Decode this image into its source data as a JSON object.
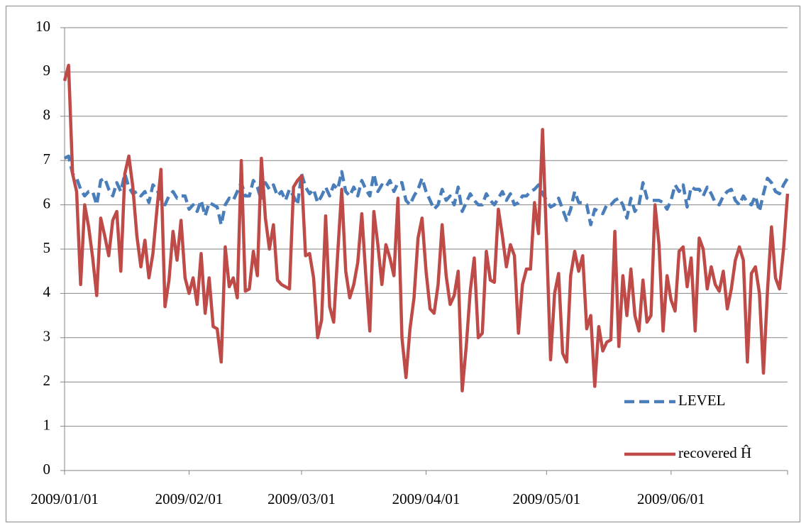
{
  "chart_data": {
    "type": "line",
    "x": [
      "2009/01/01",
      "2009/01/02",
      "2009/01/03",
      "2009/01/04",
      "2009/01/05",
      "2009/01/06",
      "2009/01/07",
      "2009/01/08",
      "2009/01/09",
      "2009/01/10",
      "2009/01/11",
      "2009/01/12",
      "2009/01/13",
      "2009/01/14",
      "2009/01/15",
      "2009/01/16",
      "2009/01/17",
      "2009/01/18",
      "2009/01/19",
      "2009/01/20",
      "2009/01/21",
      "2009/01/22",
      "2009/01/23",
      "2009/01/24",
      "2009/01/25",
      "2009/01/26",
      "2009/01/27",
      "2009/01/28",
      "2009/01/29",
      "2009/01/30",
      "2009/01/31",
      "2009/02/01",
      "2009/02/02",
      "2009/02/03",
      "2009/02/04",
      "2009/02/05",
      "2009/02/06",
      "2009/02/07",
      "2009/02/08",
      "2009/02/09",
      "2009/02/10",
      "2009/02/11",
      "2009/02/12",
      "2009/02/13",
      "2009/02/14",
      "2009/02/15",
      "2009/02/16",
      "2009/02/17",
      "2009/02/18",
      "2009/02/19",
      "2009/02/20",
      "2009/02/21",
      "2009/02/22",
      "2009/02/23",
      "2009/02/24",
      "2009/02/25",
      "2009/02/26",
      "2009/02/27",
      "2009/02/28",
      "2009/03/01",
      "2009/03/02",
      "2009/03/03",
      "2009/03/04",
      "2009/03/05",
      "2009/03/06",
      "2009/03/07",
      "2009/03/08",
      "2009/03/09",
      "2009/03/10",
      "2009/03/11",
      "2009/03/12",
      "2009/03/13",
      "2009/03/14",
      "2009/03/15",
      "2009/03/16",
      "2009/03/17",
      "2009/03/18",
      "2009/03/19",
      "2009/03/20",
      "2009/03/21",
      "2009/03/22",
      "2009/03/23",
      "2009/03/24",
      "2009/03/25",
      "2009/03/26",
      "2009/03/27",
      "2009/03/28",
      "2009/03/29",
      "2009/03/30",
      "2009/03/31",
      "2009/04/01",
      "2009/04/02",
      "2009/04/03",
      "2009/04/04",
      "2009/04/05",
      "2009/04/06",
      "2009/04/07",
      "2009/04/08",
      "2009/04/09",
      "2009/04/10",
      "2009/04/11",
      "2009/04/12",
      "2009/04/13",
      "2009/04/14",
      "2009/04/15",
      "2009/04/16",
      "2009/04/17",
      "2009/04/18",
      "2009/04/19",
      "2009/04/20",
      "2009/04/21",
      "2009/04/22",
      "2009/04/23",
      "2009/04/24",
      "2009/04/25",
      "2009/04/26",
      "2009/04/27",
      "2009/04/28",
      "2009/04/29",
      "2009/04/30",
      "2009/05/01",
      "2009/05/02",
      "2009/05/03",
      "2009/05/04",
      "2009/05/05",
      "2009/05/06",
      "2009/05/07",
      "2009/05/08",
      "2009/05/09",
      "2009/05/10",
      "2009/05/11",
      "2009/05/12",
      "2009/05/13",
      "2009/05/14",
      "2009/05/15",
      "2009/05/16",
      "2009/05/17",
      "2009/05/18",
      "2009/05/19",
      "2009/05/20",
      "2009/05/21",
      "2009/05/22",
      "2009/05/23",
      "2009/05/24",
      "2009/05/25",
      "2009/05/26",
      "2009/05/27",
      "2009/05/28",
      "2009/05/29",
      "2009/05/30",
      "2009/05/31",
      "2009/06/01",
      "2009/06/02",
      "2009/06/03",
      "2009/06/04",
      "2009/06/05",
      "2009/06/06",
      "2009/06/07",
      "2009/06/08",
      "2009/06/09",
      "2009/06/10",
      "2009/06/11",
      "2009/06/12",
      "2009/06/13",
      "2009/06/14",
      "2009/06/15",
      "2009/06/16",
      "2009/06/17",
      "2009/06/18",
      "2009/06/19",
      "2009/06/20",
      "2009/06/21",
      "2009/06/22",
      "2009/06/23",
      "2009/06/24",
      "2009/06/25",
      "2009/06/26",
      "2009/06/27",
      "2009/06/28",
      "2009/06/29",
      "2009/06/30"
    ],
    "series": [
      {
        "name": "LEVEL",
        "color": "#4a7ebb",
        "dashed": true,
        "values": [
          7.05,
          7.1,
          6.7,
          6.6,
          6.35,
          6.2,
          6.3,
          6.3,
          6.0,
          6.55,
          6.6,
          6.35,
          6.2,
          6.5,
          6.3,
          6.7,
          6.4,
          6.25,
          6.3,
          6.2,
          6.3,
          6.05,
          6.45,
          6.35,
          6.1,
          6.0,
          6.2,
          6.3,
          6.15,
          6.2,
          6.2,
          5.9,
          6.0,
          5.85,
          6.1,
          5.75,
          6.05,
          6.0,
          5.95,
          5.55,
          6.0,
          6.15,
          6.1,
          6.3,
          6.5,
          6.2,
          6.2,
          6.55,
          6.4,
          6.1,
          6.5,
          6.35,
          6.45,
          6.2,
          6.3,
          6.1,
          6.35,
          6.2,
          6.0,
          6.7,
          6.4,
          6.25,
          6.35,
          6.05,
          6.2,
          6.4,
          6.2,
          6.45,
          6.35,
          6.75,
          6.3,
          6.2,
          6.4,
          6.2,
          6.55,
          6.35,
          6.2,
          6.7,
          6.3,
          6.45,
          6.4,
          6.55,
          6.3,
          6.5,
          6.5,
          6.1,
          6.0,
          6.2,
          6.35,
          6.6,
          6.3,
          6.1,
          5.9,
          6.0,
          6.35,
          6.1,
          6.2,
          6.0,
          6.4,
          5.85,
          6.05,
          6.25,
          6.1,
          6.0,
          6.0,
          6.25,
          6.1,
          6.0,
          6.15,
          6.3,
          6.1,
          6.25,
          6.0,
          6.05,
          6.2,
          6.2,
          6.3,
          6.35,
          6.45,
          6.25,
          6.1,
          5.95,
          6.0,
          6.15,
          5.9,
          5.65,
          5.9,
          6.3,
          6.05,
          6.05,
          6.0,
          5.55,
          5.9,
          5.85,
          5.8,
          6.0,
          6.0,
          6.1,
          6.15,
          6.0,
          5.7,
          6.15,
          5.85,
          6.0,
          6.5,
          6.15,
          6.1,
          6.1,
          6.1,
          6.05,
          5.9,
          6.1,
          6.45,
          6.3,
          6.45,
          5.95,
          6.4,
          6.35,
          6.35,
          6.2,
          6.4,
          6.25,
          6.05,
          6.0,
          6.2,
          6.3,
          6.35,
          6.1,
          6.0,
          6.2,
          6.05,
          6.0,
          6.2,
          5.85,
          6.25,
          6.6,
          6.5,
          6.3,
          6.25,
          6.45,
          6.6
        ]
      },
      {
        "name": "recovered Ĥ",
        "color": "#be4b48",
        "dashed": false,
        "values": [
          8.8,
          9.15,
          6.7,
          6.3,
          4.2,
          6.0,
          5.5,
          4.8,
          3.95,
          5.7,
          5.3,
          4.85,
          5.65,
          5.85,
          4.5,
          6.7,
          7.1,
          6.4,
          5.3,
          4.6,
          5.2,
          4.35,
          4.9,
          5.9,
          6.8,
          3.7,
          4.3,
          5.4,
          4.75,
          5.65,
          4.35,
          4.0,
          4.35,
          3.75,
          4.9,
          3.55,
          4.35,
          3.25,
          3.2,
          2.45,
          5.05,
          4.15,
          4.35,
          3.9,
          7.0,
          4.05,
          4.1,
          4.95,
          4.4,
          7.05,
          5.7,
          5.0,
          5.55,
          4.3,
          4.2,
          4.15,
          4.1,
          6.4,
          6.55,
          6.65,
          4.85,
          4.9,
          4.35,
          3.0,
          3.4,
          5.75,
          3.7,
          3.35,
          4.9,
          6.35,
          4.5,
          3.9,
          4.2,
          4.7,
          5.8,
          4.4,
          3.15,
          5.85,
          5.1,
          4.2,
          5.1,
          4.8,
          4.4,
          6.15,
          3.0,
          2.1,
          3.2,
          3.9,
          5.25,
          5.7,
          4.5,
          3.65,
          3.55,
          4.2,
          5.55,
          4.4,
          3.75,
          3.95,
          4.5,
          1.8,
          2.8,
          4.05,
          4.8,
          3.0,
          3.1,
          4.95,
          4.3,
          4.25,
          5.9,
          5.3,
          4.6,
          5.1,
          4.85,
          3.1,
          4.2,
          4.55,
          4.55,
          6.05,
          5.35,
          7.7,
          5.2,
          2.5,
          4.0,
          4.45,
          2.65,
          2.45,
          4.4,
          4.95,
          4.5,
          4.85,
          3.2,
          3.5,
          1.9,
          3.25,
          2.7,
          2.9,
          2.95,
          5.4,
          2.8,
          4.4,
          3.5,
          4.55,
          3.5,
          3.15,
          4.3,
          3.35,
          3.5,
          6.0,
          5.1,
          3.15,
          4.4,
          3.85,
          3.6,
          4.95,
          5.05,
          4.15,
          4.8,
          3.15,
          5.25,
          5.0,
          4.1,
          4.6,
          4.2,
          4.05,
          4.5,
          3.65,
          4.1,
          4.75,
          5.05,
          4.75,
          2.45,
          4.45,
          4.6,
          4.0,
          2.2,
          4.05,
          5.5,
          4.35,
          4.1,
          5.0,
          6.25
        ]
      }
    ],
    "xlim": [
      "2009/01/01",
      "2009/06/30"
    ],
    "xticks": [
      "2009/01/01",
      "2009/02/01",
      "2009/03/01",
      "2009/04/01",
      "2009/05/01",
      "2009/06/01"
    ],
    "ylim": [
      0,
      10
    ],
    "yticks": [
      0,
      1,
      2,
      3,
      4,
      5,
      6,
      7,
      8,
      9,
      10
    ],
    "grid": true,
    "legend": "lower right"
  }
}
